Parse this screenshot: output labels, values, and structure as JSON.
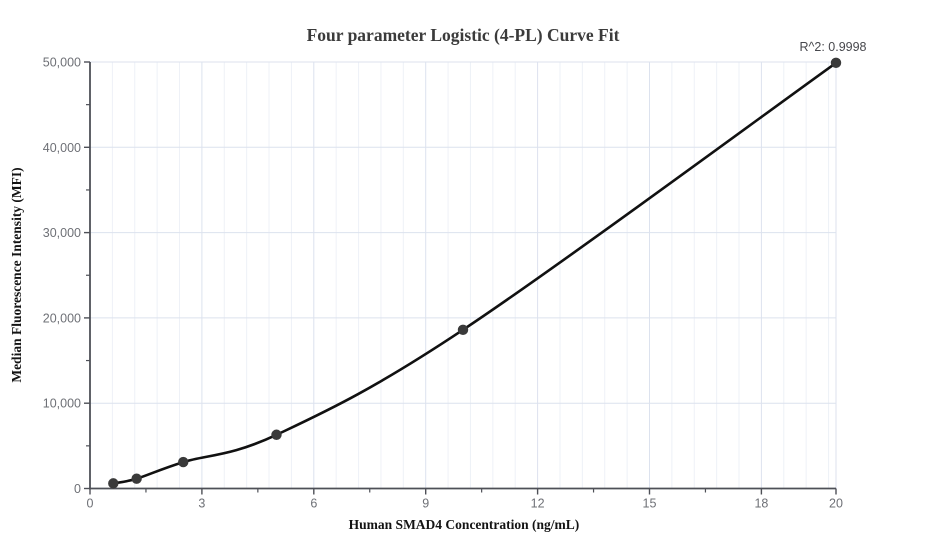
{
  "page": {
    "background": "#ffffff"
  },
  "chart_data": {
    "type": "scatter",
    "title": "Four parameter Logistic (4-PL) Curve Fit",
    "xlabel": "Human SMAD4 Concentration (ng/mL)",
    "ylabel": "Median Fluorescence Intensity (MFI)",
    "annotation": "R^2: 0.9998",
    "curve_fit": "4PL",
    "grid": "on",
    "legend": "none",
    "xlim": [
      0,
      20
    ],
    "ylim": [
      0,
      50000
    ],
    "x_major_ticks": [
      0,
      3,
      6,
      9,
      12,
      15,
      18,
      20
    ],
    "x_tick_labels": [
      "0",
      "3",
      "6",
      "9",
      "12",
      "15",
      "18",
      "20"
    ],
    "x_minor_ticks": [
      1.5,
      4.5,
      7.5,
      10.5,
      13.5,
      16.5
    ],
    "x_minor_grid_step": 0.6,
    "y_major_ticks": [
      0,
      10000,
      20000,
      30000,
      40000,
      50000
    ],
    "y_tick_labels": [
      "0",
      "10,000",
      "20,000",
      "30,000",
      "40,000",
      "50,000"
    ],
    "y_minor_ticks": [
      5000,
      15000,
      25000,
      35000,
      45000
    ],
    "points": [
      {
        "x": 0.625,
        "y": 600
      },
      {
        "x": 1.25,
        "y": 1150
      },
      {
        "x": 2.5,
        "y": 3100
      },
      {
        "x": 5,
        "y": 6300
      },
      {
        "x": 10,
        "y": 18600
      },
      {
        "x": 20,
        "y": 49900
      }
    ],
    "colors": {
      "curve": "#111111",
      "point": "#3a3a3a",
      "axis": "#4e5057",
      "tick_label": "#6e7076",
      "grid_minor": "#eef1f7",
      "grid_major": "#dce2ee",
      "title": "#3b3b3b",
      "axis_label": "#141414",
      "annotation": "#47484d"
    }
  }
}
